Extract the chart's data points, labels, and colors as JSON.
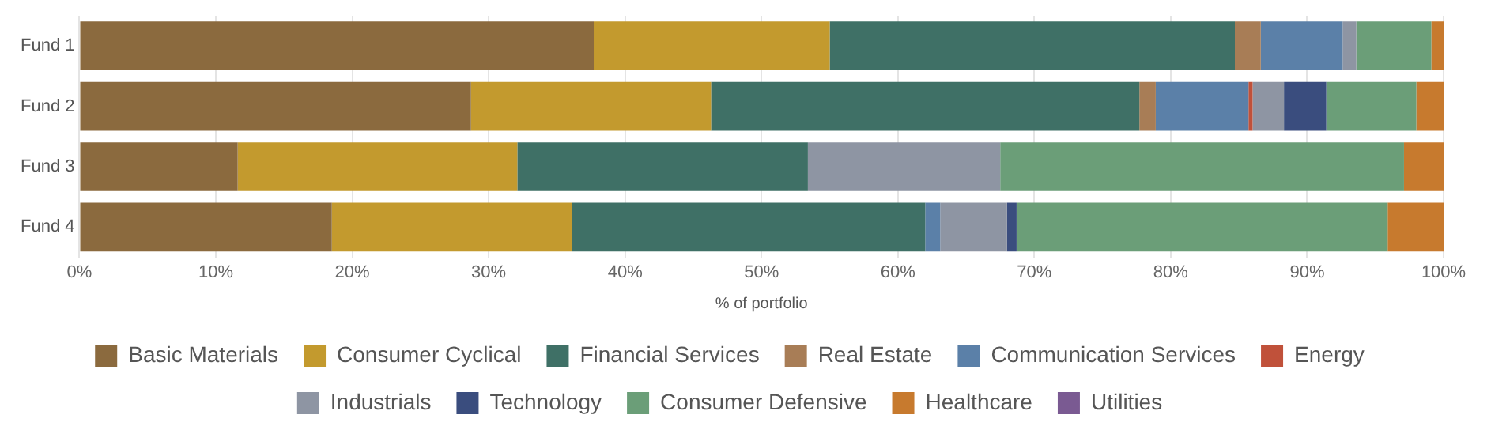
{
  "chart_data": {
    "type": "bar",
    "orientation": "horizontal",
    "stacked": true,
    "xlabel": "% of portfolio",
    "categories": [
      "Fund 1",
      "Fund 2",
      "Fund 3",
      "Fund 4"
    ],
    "series": [
      {
        "name": "Basic Materials",
        "color": "#8b6a3e",
        "values": [
          37.7,
          28.7,
          11.6,
          18.5
        ]
      },
      {
        "name": "Consumer Cyclical",
        "color": "#c39a2e",
        "values": [
          17.3,
          17.6,
          20.5,
          17.6
        ]
      },
      {
        "name": "Financial Services",
        "color": "#3f7066",
        "values": [
          29.7,
          31.4,
          21.3,
          25.9
        ]
      },
      {
        "name": "Real Estate",
        "color": "#a87d56",
        "values": [
          1.9,
          1.2,
          null,
          null
        ]
      },
      {
        "name": "Communication Services",
        "color": "#5b80a8",
        "values": [
          6.0,
          6.8,
          null,
          1.1
        ]
      },
      {
        "name": "Energy",
        "color": "#c0513a",
        "values": [
          null,
          0.3,
          null,
          null
        ]
      },
      {
        "name": "Industrials",
        "color": "#8e95a3",
        "values": [
          1.0,
          2.3,
          14.1,
          4.9
        ]
      },
      {
        "name": "Technology",
        "color": "#3a4d7e",
        "values": [
          null,
          3.1,
          null,
          0.7
        ]
      },
      {
        "name": "Consumer Defensive",
        "color": "#6b9e78",
        "values": [
          5.5,
          6.6,
          29.6,
          27.2
        ]
      },
      {
        "name": "Healthcare",
        "color": "#c77a2e",
        "values": [
          0.9,
          2.0,
          2.9,
          4.1
        ]
      },
      {
        "name": "Utilities",
        "color": "#7a5a92",
        "values": [
          null,
          null,
          null,
          null
        ]
      }
    ],
    "xlim": [
      0,
      100
    ],
    "xticks": [
      {
        "value": 0,
        "label": "0%"
      },
      {
        "value": 10,
        "label": "10%"
      },
      {
        "value": 20,
        "label": "20%"
      },
      {
        "value": 30,
        "label": "30%"
      },
      {
        "value": 40,
        "label": "40%"
      },
      {
        "value": 50,
        "label": "50%"
      },
      {
        "value": 60,
        "label": "60%"
      },
      {
        "value": 70,
        "label": "70%"
      },
      {
        "value": 80,
        "label": "80%"
      },
      {
        "value": 90,
        "label": "90%"
      },
      {
        "value": 100,
        "label": "100%"
      }
    ],
    "grid": "x",
    "legend": "bottom"
  }
}
